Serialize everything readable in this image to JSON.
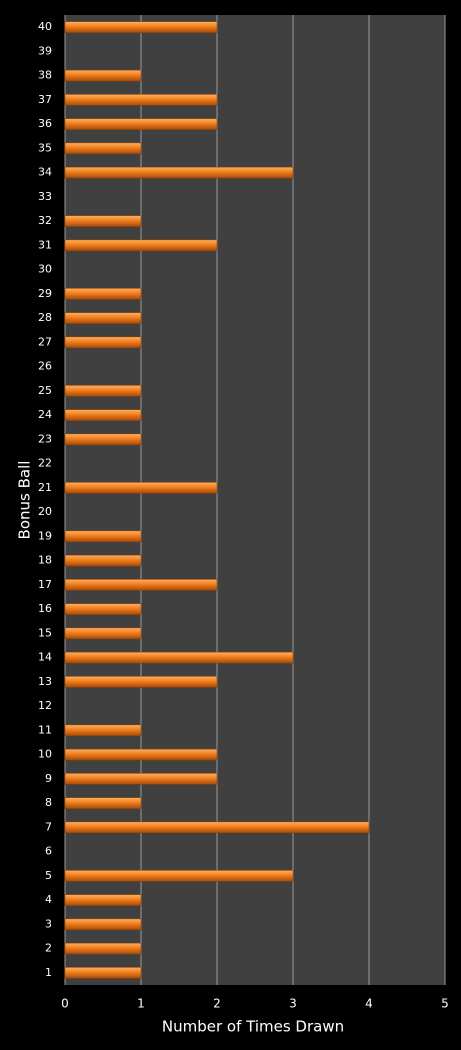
{
  "chart_data": {
    "type": "bar",
    "orientation": "horizontal",
    "x_label": "Number of Times Drawn",
    "y_label": "Bonus Ball",
    "categories": [
      "1",
      "2",
      "3",
      "4",
      "5",
      "6",
      "7",
      "8",
      "9",
      "10",
      "11",
      "12",
      "13",
      "14",
      "15",
      "16",
      "17",
      "18",
      "19",
      "20",
      "21",
      "22",
      "23",
      "24",
      "25",
      "26",
      "27",
      "28",
      "29",
      "30",
      "31",
      "32",
      "33",
      "34",
      "35",
      "36",
      "37",
      "38",
      "39",
      "40"
    ],
    "values": [
      1,
      1,
      1,
      1,
      3,
      0,
      4,
      1,
      2,
      2,
      1,
      0,
      2,
      3,
      1,
      1,
      2,
      1,
      1,
      0,
      2,
      0,
      1,
      1,
      1,
      0,
      1,
      1,
      1,
      0,
      2,
      1,
      0,
      3,
      1,
      2,
      2,
      1,
      0,
      2
    ],
    "color": "#f07f1e",
    "xlim": [
      0,
      5
    ],
    "xticks": [
      0,
      1,
      2,
      3,
      4,
      5
    ],
    "grid": true
  }
}
